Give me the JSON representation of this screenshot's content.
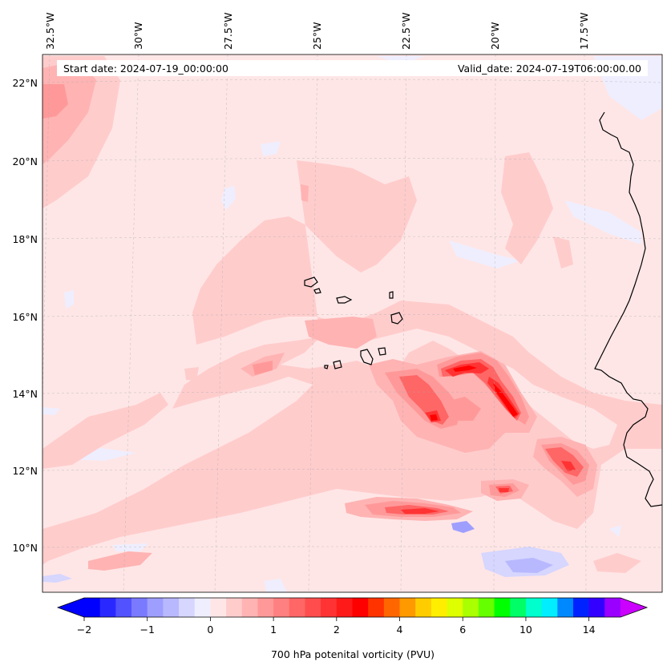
{
  "header": {
    "start_date": "Start date: 2024-07-19_00:00:00",
    "valid_date": "Valid_date: 2024-07-19T06:00:00.00"
  },
  "map": {
    "lon_labels": [
      "32.5°W",
      "30°W",
      "27.5°W",
      "25°W",
      "22.5°W",
      "20°W",
      "17.5°W"
    ],
    "lat_labels": [
      "22°N",
      "20°N",
      "18°N",
      "16°N",
      "14°N",
      "12°N",
      "10°N"
    ],
    "background_color": "#ffe6e6"
  },
  "colorbar": {
    "label": "700 hPa potenital vorticity (PVU)",
    "tick_labels": [
      "−2",
      "−1",
      "0",
      "1",
      "2",
      "4",
      "6",
      "10",
      "14"
    ],
    "under_color": "#0000ff",
    "over_color": "#cc00ff",
    "colors": [
      "#0000ff",
      "#2929ff",
      "#5252ff",
      "#7a7aff",
      "#9e9eff",
      "#b8b8ff",
      "#d6d6ff",
      "#eeeeff",
      "#ffe6e6",
      "#ffcccc",
      "#ffb3b3",
      "#ff9999",
      "#ff8080",
      "#ff6666",
      "#ff4d4d",
      "#ff3333",
      "#ff1a1a",
      "#ff0000",
      "#ff3300",
      "#ff6600",
      "#ff9900",
      "#ffcc00",
      "#ffee00",
      "#ddff00",
      "#aaff00",
      "#66ff00",
      "#00ff00",
      "#00ff66",
      "#00ffcc",
      "#00eeff",
      "#0088ff",
      "#0022ff",
      "#3300ff",
      "#9900ff"
    ]
  }
}
